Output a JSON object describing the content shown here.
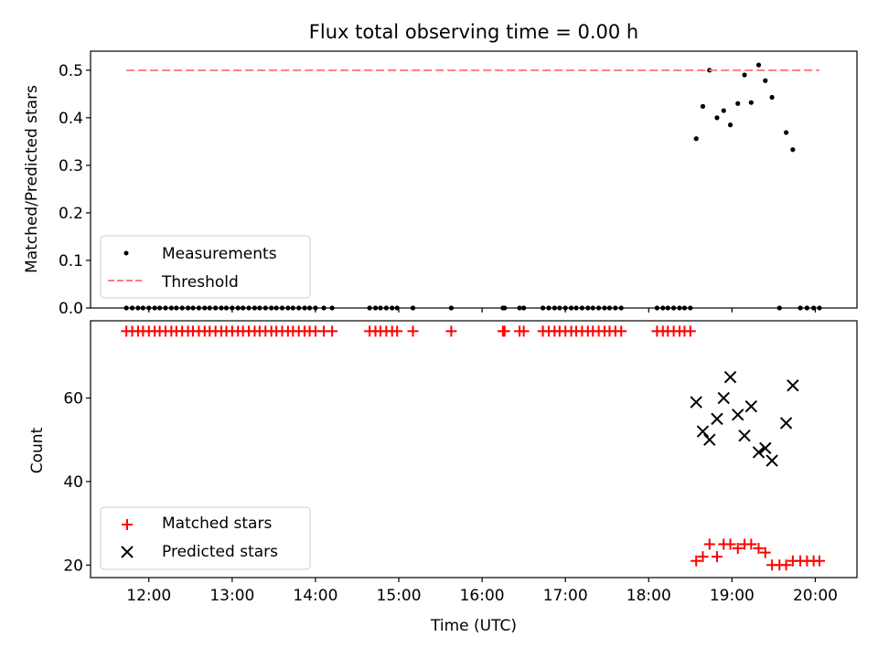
{
  "chart_data": [
    {
      "type": "scatter",
      "title": "Flux total observing time = 0.00 h",
      "ylabel": "Matched/Predicted stars",
      "xlabel": "",
      "x_unit": "hours UTC",
      "xlim": [
        11.3,
        20.5
      ],
      "ylim": [
        0,
        0.54
      ],
      "yticks": [
        0.0,
        0.1,
        0.2,
        0.3,
        0.4,
        0.5
      ],
      "ytick_labels": [
        "0.0",
        "0.1",
        "0.2",
        "0.3",
        "0.4",
        "0.5"
      ],
      "legend_position": "lower-left",
      "series": [
        {
          "name": "Measurements",
          "marker": "dot",
          "color": "#000000",
          "x": [
            11.73,
            11.8,
            11.87,
            11.93,
            12.0,
            12.07,
            12.13,
            12.2,
            12.27,
            12.33,
            12.4,
            12.47,
            12.53,
            12.6,
            12.67,
            12.73,
            12.8,
            12.87,
            12.93,
            13.0,
            13.07,
            13.13,
            13.2,
            13.27,
            13.33,
            13.4,
            13.47,
            13.53,
            13.6,
            13.67,
            13.73,
            13.8,
            13.87,
            13.93,
            14.0,
            14.1,
            14.2,
            14.65,
            14.72,
            14.78,
            14.85,
            14.92,
            14.98,
            15.17,
            15.63,
            16.25,
            16.27,
            16.45,
            16.5,
            16.73,
            16.8,
            16.87,
            16.93,
            17.0,
            17.07,
            17.13,
            17.2,
            17.27,
            17.33,
            17.4,
            17.47,
            17.53,
            17.6,
            17.67,
            18.1,
            18.17,
            18.23,
            18.3,
            18.37,
            18.43,
            18.5,
            18.57,
            18.65,
            18.73,
            18.82,
            18.9,
            18.98,
            19.07,
            19.15,
            19.23,
            19.32,
            19.4,
            19.48,
            19.57,
            19.65,
            19.73,
            19.82,
            19.9,
            19.98,
            20.05
          ],
          "y": [
            0,
            0,
            0,
            0,
            0,
            0,
            0,
            0,
            0,
            0,
            0,
            0,
            0,
            0,
            0,
            0,
            0,
            0,
            0,
            0,
            0,
            0,
            0,
            0,
            0,
            0,
            0,
            0,
            0,
            0,
            0,
            0,
            0,
            0,
            0,
            0,
            0,
            0,
            0,
            0,
            0,
            0,
            0,
            0,
            0,
            0,
            0,
            0,
            0,
            0,
            0,
            0,
            0,
            0,
            0,
            0,
            0,
            0,
            0,
            0,
            0,
            0,
            0,
            0,
            0,
            0,
            0,
            0,
            0,
            0,
            0,
            0.356,
            0.424,
            0.5,
            0.4,
            0.415,
            0.385,
            0.43,
            0.49,
            0.432,
            0.511,
            0.478,
            0.443,
            0,
            0.369,
            0.333,
            0,
            0,
            0,
            0
          ]
        },
        {
          "name": "Threshold",
          "marker": "dashed-line",
          "color": "#ff7f7f",
          "x": [
            11.73,
            20.05
          ],
          "y": [
            0.5,
            0.5
          ]
        }
      ]
    },
    {
      "type": "scatter",
      "title": "",
      "ylabel": "Count",
      "xlabel": "Time (UTC)",
      "x_unit": "hours UTC",
      "xlim": [
        11.3,
        20.5
      ],
      "ylim": [
        17,
        78.5
      ],
      "xticks": [
        12,
        13,
        14,
        15,
        16,
        17,
        18,
        19,
        20
      ],
      "xtick_labels": [
        "12:00",
        "13:00",
        "14:00",
        "15:00",
        "16:00",
        "17:00",
        "18:00",
        "19:00",
        "20:00"
      ],
      "yticks": [
        20,
        40,
        60
      ],
      "ytick_labels": [
        "20",
        "40",
        "60"
      ],
      "legend_position": "lower-left",
      "series": [
        {
          "name": "Matched stars",
          "marker": "plus",
          "color": "#ff0000",
          "x": [
            11.73,
            11.8,
            11.87,
            11.93,
            12.0,
            12.07,
            12.13,
            12.2,
            12.27,
            12.33,
            12.4,
            12.47,
            12.53,
            12.6,
            12.67,
            12.73,
            12.8,
            12.87,
            12.93,
            13.0,
            13.07,
            13.13,
            13.2,
            13.27,
            13.33,
            13.4,
            13.47,
            13.53,
            13.6,
            13.67,
            13.73,
            13.8,
            13.87,
            13.93,
            14.0,
            14.1,
            14.2,
            14.65,
            14.72,
            14.78,
            14.85,
            14.92,
            14.98,
            15.17,
            15.63,
            16.25,
            16.27,
            16.45,
            16.5,
            16.73,
            16.8,
            16.87,
            16.93,
            17.0,
            17.07,
            17.13,
            17.2,
            17.27,
            17.33,
            17.4,
            17.47,
            17.53,
            17.6,
            17.67,
            18.1,
            18.17,
            18.23,
            18.3,
            18.37,
            18.43,
            18.5,
            18.57,
            18.65,
            18.73,
            18.82,
            18.9,
            18.98,
            19.07,
            19.15,
            19.23,
            19.32,
            19.4,
            19.48,
            19.57,
            19.65,
            19.73,
            19.82,
            19.9,
            19.98,
            20.05
          ],
          "y": [
            76,
            76,
            76,
            76,
            76,
            76,
            76,
            76,
            76,
            76,
            76,
            76,
            76,
            76,
            76,
            76,
            76,
            76,
            76,
            76,
            76,
            76,
            76,
            76,
            76,
            76,
            76,
            76,
            76,
            76,
            76,
            76,
            76,
            76,
            76,
            76,
            76,
            76,
            76,
            76,
            76,
            76,
            76,
            76,
            76,
            76,
            76,
            76,
            76,
            76,
            76,
            76,
            76,
            76,
            76,
            76,
            76,
            76,
            76,
            76,
            76,
            76,
            76,
            76,
            76,
            76,
            76,
            76,
            76,
            76,
            76,
            21,
            22,
            25,
            22,
            25,
            25,
            24,
            25,
            25,
            24,
            23,
            20,
            20,
            20,
            21,
            21,
            21,
            21,
            21
          ]
        },
        {
          "name": "Predicted stars",
          "marker": "x",
          "color": "#000000",
          "x": [
            18.57,
            18.65,
            18.73,
            18.82,
            18.9,
            18.98,
            19.07,
            19.15,
            19.23,
            19.32,
            19.4,
            19.48,
            19.65,
            19.73
          ],
          "y": [
            59,
            52,
            50,
            55,
            60,
            65,
            56,
            51,
            58,
            47,
            48,
            45,
            54,
            63
          ]
        }
      ]
    }
  ]
}
